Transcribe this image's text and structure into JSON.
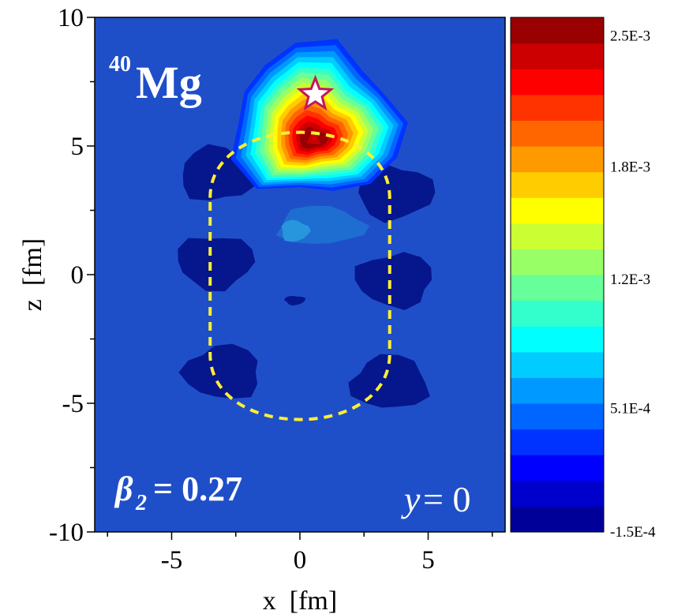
{
  "chart_data": {
    "type": "heatmap",
    "subtype": "filled-contour",
    "xlabel": "x  [fm]",
    "ylabel": "z  [fm]",
    "xlim": [
      -8,
      8
    ],
    "ylim": [
      -10,
      10
    ],
    "x_ticks": [
      "-5",
      "0",
      "5"
    ],
    "y_ticks": [
      "10",
      "5",
      "0",
      "-5",
      "-10"
    ],
    "colorbar": {
      "min": -0.00015,
      "max": 0.0026,
      "labels": [
        "2.5E-3",
        "1.8E-3",
        "1.2E-3",
        "5.1E-4",
        "-1.5E-4"
      ],
      "levels": 20
    },
    "annotations": {
      "nucleus_mass": "40",
      "nucleus_symbol": "Mg",
      "beta_symbol": "β",
      "beta_sub": "2",
      "beta_value": "= 0.27",
      "y_var": "y",
      "y_value": "= 0"
    },
    "background_color": "#1f4fc8",
    "peak": {
      "x": 0.5,
      "z": 5.3,
      "value": 0.0026
    },
    "star_marker": {
      "x": 0.6,
      "z": 7.0
    },
    "dashed_outline": {
      "color": "#ffee33",
      "x_halfwidth": 3.5,
      "z_top": 5.5,
      "z_bottom": -5.6
    },
    "blobs": [
      {
        "x": -3.2,
        "z": 3.9,
        "value": -0.00012
      },
      {
        "x": 3.7,
        "z": 3.2,
        "value": -0.00012
      },
      {
        "x": -3.3,
        "z": 0.5,
        "value": -0.00012
      },
      {
        "x": 3.7,
        "z": -0.2,
        "value": -0.00012
      },
      {
        "x": -3.0,
        "z": -3.8,
        "value": -0.00012
      },
      {
        "x": 3.5,
        "z": -4.2,
        "value": -0.00012
      },
      {
        "x": 0.8,
        "z": 1.9,
        "value": 0.00012
      },
      {
        "x": -0.2,
        "z": 1.7,
        "value": 0.00022
      },
      {
        "x": -0.2,
        "z": -1.0,
        "value": -7e-05
      }
    ]
  }
}
